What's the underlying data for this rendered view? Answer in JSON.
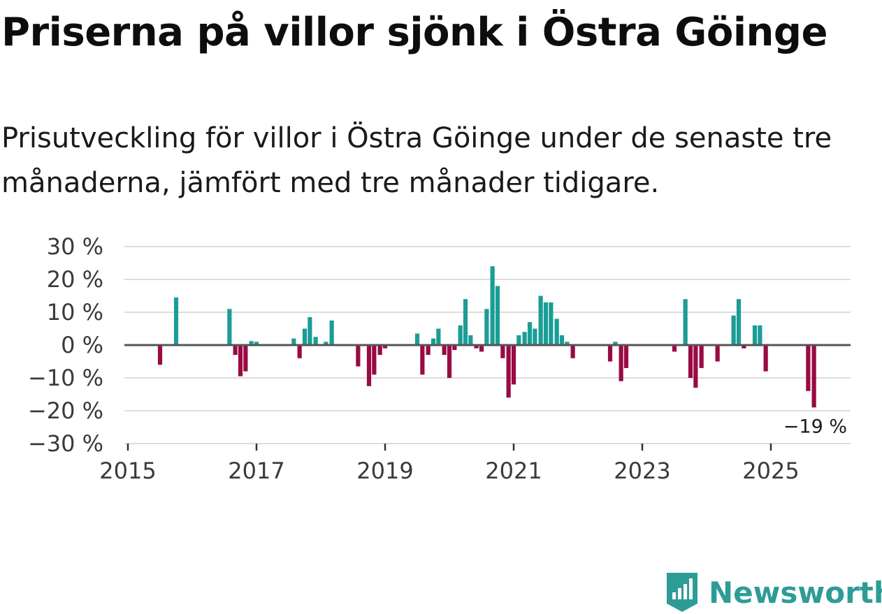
{
  "title": "Priserna på villor sjönk i Östra Göinge",
  "subtitle": "Prisutveckling för villor i Östra Göinge under de senaste tre månaderna, jämfört med tre månader tidigare.",
  "brand": {
    "name": "Newsworthy",
    "icon": "newsworthy-logo-icon"
  },
  "colors": {
    "positive": "#1a9d96",
    "negative": "#9a0a45",
    "grid": "#dddddd",
    "zero": "#555555"
  },
  "chart_data": {
    "type": "bar",
    "ylim": [
      -30,
      30
    ],
    "yticks": [
      30,
      20,
      10,
      0,
      -10,
      -20,
      -30
    ],
    "ytick_labels": [
      "30 %",
      "20 %",
      "10 %",
      "0 %",
      "−10 %",
      "−20 %",
      "−30 %"
    ],
    "xticks": [
      2015,
      2017,
      2019,
      2021,
      2023,
      2025
    ],
    "xtick_labels": [
      "2015",
      "2017",
      "2019",
      "2021",
      "2023",
      "2025"
    ],
    "grid": true,
    "annotation": {
      "text": "−19 %",
      "x": 2025.67,
      "value": -19
    },
    "series": [
      {
        "name": "Prisutveckling",
        "points": [
          {
            "x": 2015.5,
            "y": -6
          },
          {
            "x": 2015.75,
            "y": 14.5
          },
          {
            "x": 2016.58,
            "y": 11
          },
          {
            "x": 2016.67,
            "y": -3
          },
          {
            "x": 2016.75,
            "y": -9.5
          },
          {
            "x": 2016.83,
            "y": -8
          },
          {
            "x": 2016.92,
            "y": 1.2
          },
          {
            "x": 2017.0,
            "y": 1.0
          },
          {
            "x": 2017.58,
            "y": 2
          },
          {
            "x": 2017.67,
            "y": -4
          },
          {
            "x": 2017.75,
            "y": 5
          },
          {
            "x": 2017.83,
            "y": 8.5
          },
          {
            "x": 2017.92,
            "y": 2.5
          },
          {
            "x": 2018.08,
            "y": 1
          },
          {
            "x": 2018.17,
            "y": 7.5
          },
          {
            "x": 2018.58,
            "y": -6.5
          },
          {
            "x": 2018.75,
            "y": -12.5
          },
          {
            "x": 2018.83,
            "y": -9
          },
          {
            "x": 2018.92,
            "y": -3
          },
          {
            "x": 2019.0,
            "y": -1
          },
          {
            "x": 2019.5,
            "y": 3.5
          },
          {
            "x": 2019.58,
            "y": -9
          },
          {
            "x": 2019.67,
            "y": -3
          },
          {
            "x": 2019.75,
            "y": 2
          },
          {
            "x": 2019.83,
            "y": 5
          },
          {
            "x": 2019.92,
            "y": -3
          },
          {
            "x": 2020.0,
            "y": -10
          },
          {
            "x": 2020.08,
            "y": -1.5
          },
          {
            "x": 2020.17,
            "y": 6
          },
          {
            "x": 2020.25,
            "y": 14
          },
          {
            "x": 2020.33,
            "y": 3
          },
          {
            "x": 2020.42,
            "y": -1
          },
          {
            "x": 2020.5,
            "y": -2
          },
          {
            "x": 2020.58,
            "y": 11
          },
          {
            "x": 2020.67,
            "y": 24
          },
          {
            "x": 2020.75,
            "y": 18
          },
          {
            "x": 2020.83,
            "y": -4
          },
          {
            "x": 2020.92,
            "y": -16
          },
          {
            "x": 2021.0,
            "y": -12
          },
          {
            "x": 2021.08,
            "y": 3
          },
          {
            "x": 2021.17,
            "y": 4
          },
          {
            "x": 2021.25,
            "y": 7
          },
          {
            "x": 2021.33,
            "y": 5
          },
          {
            "x": 2021.42,
            "y": 15
          },
          {
            "x": 2021.5,
            "y": 13
          },
          {
            "x": 2021.58,
            "y": 13
          },
          {
            "x": 2021.67,
            "y": 8
          },
          {
            "x": 2021.75,
            "y": 3
          },
          {
            "x": 2021.83,
            "y": 1
          },
          {
            "x": 2021.92,
            "y": -4
          },
          {
            "x": 2022.5,
            "y": -5
          },
          {
            "x": 2022.58,
            "y": 1
          },
          {
            "x": 2022.67,
            "y": -11
          },
          {
            "x": 2022.75,
            "y": -7
          },
          {
            "x": 2023.5,
            "y": -2
          },
          {
            "x": 2023.67,
            "y": 14
          },
          {
            "x": 2023.75,
            "y": -10
          },
          {
            "x": 2023.83,
            "y": -13
          },
          {
            "x": 2023.92,
            "y": -7
          },
          {
            "x": 2024.17,
            "y": -5
          },
          {
            "x": 2024.42,
            "y": 9
          },
          {
            "x": 2024.5,
            "y": 14
          },
          {
            "x": 2024.58,
            "y": -1
          },
          {
            "x": 2024.75,
            "y": 6
          },
          {
            "x": 2024.83,
            "y": 6
          },
          {
            "x": 2024.92,
            "y": -8
          },
          {
            "x": 2025.58,
            "y": -14
          },
          {
            "x": 2025.67,
            "y": -19
          }
        ]
      }
    ]
  }
}
